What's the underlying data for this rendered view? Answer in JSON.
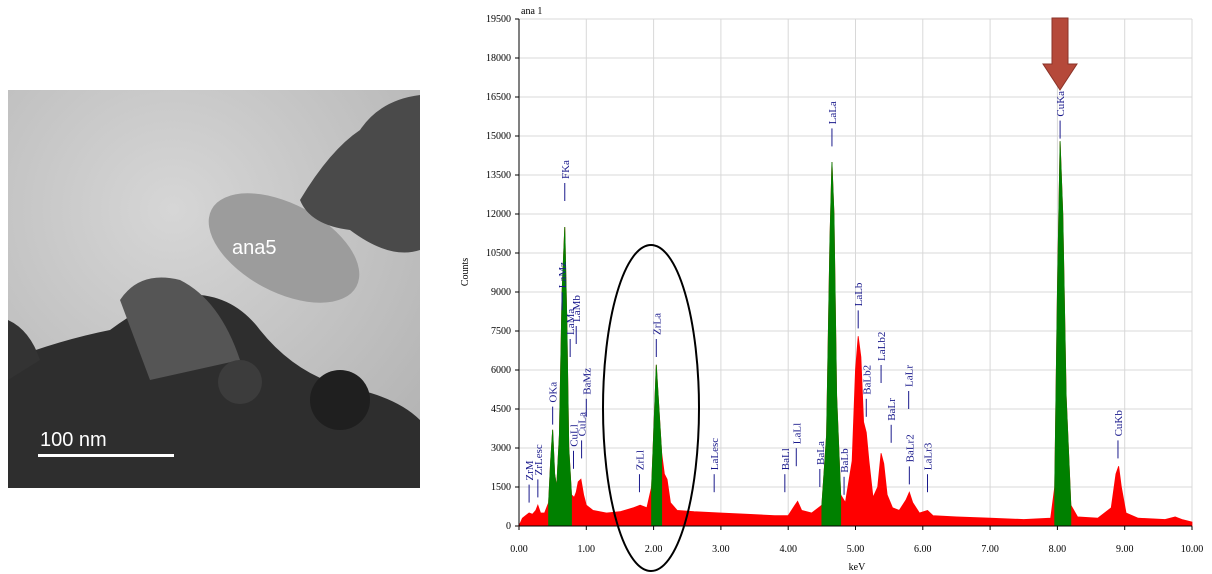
{
  "image": {
    "label": "ana5",
    "scale_bar": "100 nm"
  },
  "chart_data": {
    "type": "area",
    "title": "ana 1",
    "ylabel": "Counts",
    "xlabel": "keV",
    "x": [
      0,
      0.05,
      0.1,
      0.15,
      0.2,
      0.25,
      0.28,
      0.32,
      0.38,
      0.44,
      0.47,
      0.5,
      0.53,
      0.56,
      0.6,
      0.64,
      0.68,
      0.71,
      0.74,
      0.78,
      0.82,
      0.85,
      0.88,
      0.92,
      0.96,
      1.0,
      1.1,
      1.3,
      1.5,
      1.7,
      1.8,
      1.9,
      1.97,
      2.0,
      2.04,
      2.08,
      2.12,
      2.16,
      2.2,
      2.25,
      2.35,
      2.6,
      3.0,
      3.4,
      3.8,
      4.0,
      4.1,
      4.14,
      4.2,
      4.35,
      4.5,
      4.57,
      4.62,
      4.65,
      4.68,
      4.72,
      4.78,
      4.85,
      4.95,
      5.0,
      5.04,
      5.08,
      5.12,
      5.16,
      5.2,
      5.26,
      5.33,
      5.38,
      5.42,
      5.47,
      5.55,
      5.65,
      5.75,
      5.8,
      5.85,
      5.95,
      6.07,
      6.15,
      6.5,
      7.0,
      7.5,
      7.9,
      7.96,
      8.0,
      8.04,
      8.08,
      8.13,
      8.2,
      8.3,
      8.6,
      8.8,
      8.87,
      8.91,
      8.95,
      9.02,
      9.2,
      9.6,
      9.75,
      9.85,
      10.0
    ],
    "series": [
      {
        "color": "#ff0000",
        "values": [
          0,
          300,
          400,
          500,
          450,
          600,
          800,
          500,
          500,
          900,
          2500,
          3700,
          2000,
          1500,
          3500,
          9000,
          11500,
          8000,
          3000,
          1200,
          1100,
          1300,
          1700,
          1800,
          1200,
          800,
          600,
          500,
          550,
          700,
          800,
          700,
          1500,
          3500,
          6200,
          4500,
          2800,
          2000,
          1800,
          900,
          600,
          550,
          500,
          450,
          400,
          400,
          800,
          950,
          600,
          500,
          800,
          3500,
          11000,
          14000,
          12000,
          5000,
          1200,
          900,
          2500,
          6000,
          7300,
          6500,
          4000,
          3600,
          2500,
          1100,
          1500,
          2800,
          2400,
          1200,
          700,
          600,
          1000,
          1300,
          900,
          500,
          600,
          400,
          350,
          300,
          250,
          300,
          1500,
          9000,
          14800,
          12000,
          5000,
          800,
          350,
          300,
          700,
          2000,
          2300,
          1500,
          500,
          300,
          250,
          350,
          250,
          150
        ]
      },
      {
        "color": "#008000",
        "values": [
          null,
          null,
          null,
          null,
          null,
          null,
          null,
          null,
          null,
          900,
          2500,
          3700,
          2000,
          1500,
          3500,
          9000,
          11500,
          8000,
          3000,
          1200,
          null,
          null,
          null,
          null,
          null,
          null,
          null,
          null,
          null,
          null,
          null,
          null,
          1500,
          3500,
          6200,
          4500,
          2800,
          null,
          null,
          null,
          null,
          null,
          null,
          null,
          null,
          null,
          null,
          null,
          null,
          null,
          800,
          3500,
          11000,
          14000,
          12000,
          5000,
          1200,
          null,
          null,
          null,
          null,
          null,
          null,
          null,
          null,
          null,
          null,
          null,
          null,
          null,
          null,
          null,
          null,
          null,
          null,
          null,
          null,
          null,
          null,
          null,
          null,
          null,
          1500,
          9000,
          14800,
          12000,
          5000,
          800,
          null,
          null,
          null,
          null,
          null,
          null,
          null,
          null,
          null,
          null,
          null,
          null
        ]
      }
    ],
    "xlim": [
      0,
      10
    ],
    "ylim": [
      0,
      19500
    ],
    "xticks": [
      {
        "value": 0,
        "label": "0.00"
      },
      {
        "value": 1,
        "label": "1.00"
      },
      {
        "value": 2,
        "label": "2.00"
      },
      {
        "value": 3,
        "label": "3.00"
      },
      {
        "value": 4,
        "label": "4.00"
      },
      {
        "value": 5,
        "label": "5.00"
      },
      {
        "value": 6,
        "label": "6.00"
      },
      {
        "value": 7,
        "label": "7.00"
      },
      {
        "value": 8,
        "label": "8.00"
      },
      {
        "value": 9,
        "label": "9.00"
      },
      {
        "value": 10,
        "label": "10.00"
      }
    ],
    "yticks": [
      0,
      1500,
      3000,
      4500,
      6000,
      7500,
      9000,
      10500,
      12000,
      13500,
      15000,
      16500,
      18000,
      19500
    ],
    "grid": true,
    "peak_labels": [
      {
        "label": "ZrM",
        "x": 0.15,
        "y": 900
      },
      {
        "label": "ZrLesc",
        "x": 0.28,
        "y": 1100
      },
      {
        "label": "OKa",
        "x": 0.5,
        "y": 3900
      },
      {
        "label": "LaMz",
        "x": 0.64,
        "y": 8300
      },
      {
        "label": "FKa",
        "x": 0.68,
        "y": 12500
      },
      {
        "label": "LaMa",
        "x": 0.76,
        "y": 6500
      },
      {
        "label": "LaMb",
        "x": 0.85,
        "y": 7000
      },
      {
        "label": "CuLl",
        "x": 0.81,
        "y": 2200
      },
      {
        "label": "CuLa",
        "x": 0.93,
        "y": 2600
      },
      {
        "label": "BaMz",
        "x": 1.0,
        "y": 4200
      },
      {
        "label": "ZrLl",
        "x": 1.79,
        "y": 1300
      },
      {
        "label": "ZrLa",
        "x": 2.04,
        "y": 6500
      },
      {
        "label": "LaLesc",
        "x": 2.9,
        "y": 1300
      },
      {
        "label": "BaLl",
        "x": 3.95,
        "y": 1300
      },
      {
        "label": "LaLl",
        "x": 4.12,
        "y": 2300
      },
      {
        "label": "BaLa",
        "x": 4.47,
        "y": 1500
      },
      {
        "label": "LaLa",
        "x": 4.65,
        "y": 14600
      },
      {
        "label": "BaLb",
        "x": 4.83,
        "y": 1200
      },
      {
        "label": "LaLb",
        "x": 5.04,
        "y": 7600
      },
      {
        "label": "BaLb2",
        "x": 5.16,
        "y": 4200
      },
      {
        "label": "LaLb2",
        "x": 5.38,
        "y": 5500
      },
      {
        "label": "BaLr",
        "x": 5.53,
        "y": 3200
      },
      {
        "label": "LaLr",
        "x": 5.79,
        "y": 4500
      },
      {
        "label": "BaLr2",
        "x": 5.8,
        "y": 1600
      },
      {
        "label": "LaLr3",
        "x": 6.07,
        "y": 1300
      },
      {
        "label": "CuKa",
        "x": 8.04,
        "y": 14900
      },
      {
        "label": "CuKb",
        "x": 8.9,
        "y": 2600
      }
    ]
  }
}
